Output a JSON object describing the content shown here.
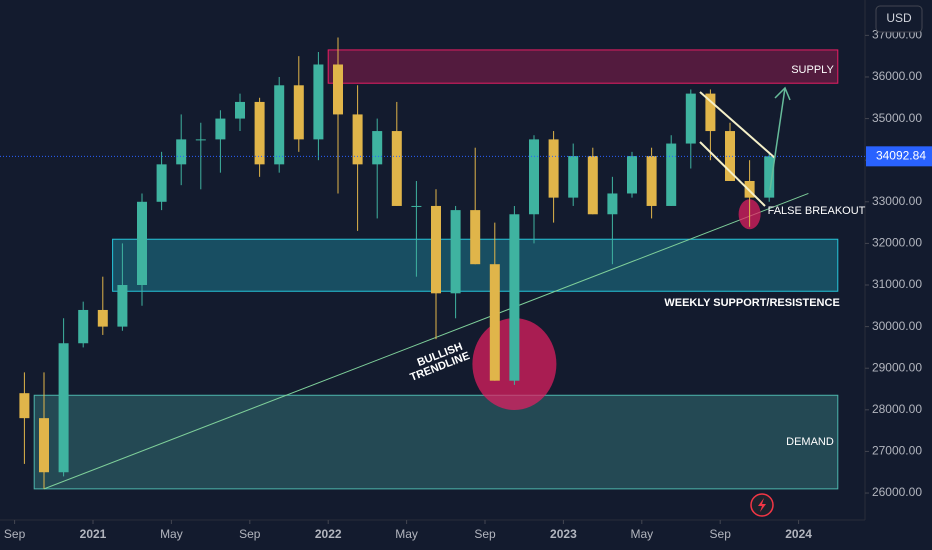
{
  "chart_data": {
    "type": "candlestick",
    "currency": "USD",
    "x": [
      "2020-09",
      "2020-10",
      "2020-11",
      "2020-12",
      "2021-01",
      "2021-02",
      "2021-03",
      "2021-04",
      "2021-05",
      "2021-06",
      "2021-07",
      "2021-08",
      "2021-09",
      "2021-10",
      "2021-11",
      "2021-12",
      "2022-01",
      "2022-02",
      "2022-03",
      "2022-04",
      "2022-05",
      "2022-06",
      "2022-07",
      "2022-08",
      "2022-09",
      "2022-10",
      "2022-11",
      "2022-12",
      "2023-01",
      "2023-02",
      "2023-03",
      "2023-04",
      "2023-05",
      "2023-06",
      "2023-07",
      "2023-08",
      "2023-09",
      "2023-10",
      "2023-11"
    ],
    "open": [
      28400,
      27800,
      26500,
      29600,
      30400,
      30000,
      31000,
      33000,
      33900,
      34500,
      34500,
      35000,
      35400,
      33900,
      35800,
      34500,
      36300,
      35100,
      33900,
      34700,
      32900,
      32900,
      30800,
      32800,
      31500,
      28700,
      32700,
      34500,
      33100,
      34100,
      32700,
      33200,
      34100,
      32900,
      34400,
      35600,
      34700,
      33500,
      33100
    ],
    "high": [
      28900,
      28900,
      30200,
      30600,
      31200,
      32000,
      33200,
      34200,
      35100,
      34900,
      35200,
      35600,
      35500,
      36000,
      36500,
      36600,
      36950,
      35800,
      35000,
      35400,
      33500,
      33300,
      32900,
      34300,
      32500,
      32900,
      34600,
      34700,
      34400,
      34300,
      33600,
      34200,
      34300,
      34600,
      35700,
      35700,
      34900,
      34000,
      34200
    ],
    "low": [
      26700,
      26100,
      26400,
      29500,
      29800,
      29900,
      30500,
      32800,
      33400,
      33300,
      33700,
      34700,
      33600,
      33700,
      34200,
      34000,
      33200,
      32300,
      32600,
      32900,
      31200,
      29700,
      30200,
      31500,
      28700,
      28600,
      32000,
      32500,
      32900,
      32700,
      31500,
      33100,
      32600,
      32900,
      33800,
      34000,
      33500,
      32400,
      33000
    ],
    "close": [
      27800,
      26500,
      29600,
      30400,
      30000,
      31000,
      33000,
      33900,
      34500,
      34500,
      35000,
      35400,
      33900,
      35800,
      34500,
      36300,
      35100,
      33900,
      34700,
      32900,
      32900,
      30800,
      32800,
      31500,
      28700,
      32700,
      34500,
      33100,
      34100,
      32700,
      33200,
      34100,
      32900,
      34400,
      35600,
      34700,
      33500,
      33100,
      34092.84
    ],
    "up_color": "#3fb3a0",
    "down_color": "#e0b54a",
    "last_price": 34092.84,
    "ylim": [
      25400,
      37850
    ],
    "yticks": [
      {
        "value": 26000,
        "label": "26000.00"
      },
      {
        "value": 27000,
        "label": "27000.00"
      },
      {
        "value": 28000,
        "label": "28000.00"
      },
      {
        "value": 29000,
        "label": "29000.00"
      },
      {
        "value": 30000,
        "label": "30000.00"
      },
      {
        "value": 31000,
        "label": "31000.00"
      },
      {
        "value": 32000,
        "label": "32000.00"
      },
      {
        "value": 33000,
        "label": "33000.00"
      },
      {
        "value": 34000,
        "label": "34000.00"
      },
      {
        "value": 35000,
        "label": "35000.00"
      },
      {
        "value": 36000,
        "label": "36000.00"
      },
      {
        "value": 37000,
        "label": "37000.00"
      }
    ],
    "xticks": [
      {
        "value": "2020-09",
        "label": "Sep"
      },
      {
        "value": "2021-01",
        "label": "2021"
      },
      {
        "value": "2021-05",
        "label": "May"
      },
      {
        "value": "2021-09",
        "label": "Sep"
      },
      {
        "value": "2022-01",
        "label": "2022"
      },
      {
        "value": "2022-05",
        "label": "May"
      },
      {
        "value": "2022-09",
        "label": "Sep"
      },
      {
        "value": "2023-01",
        "label": "2023"
      },
      {
        "value": "2023-05",
        "label": "May"
      },
      {
        "value": "2023-09",
        "label": "Sep"
      },
      {
        "value": "2024-01",
        "label": "2024"
      }
    ],
    "zones": [
      {
        "label": "SUPPLY",
        "from": "2022-01",
        "to": "2024-03",
        "low": 35850,
        "high": 36650,
        "color": "#e91e63"
      },
      {
        "label": "WEEKLY SUPPORT/RESISTENCE",
        "from": "2021-02",
        "to": "2024-03",
        "low": 30850,
        "high": 32100,
        "color": "#26c6da"
      },
      {
        "label": "DEMAND",
        "from": "2020-10",
        "to": "2024-03",
        "low": 26100,
        "high": 28350,
        "color": "#4db6ac"
      }
    ],
    "trendline": {
      "label": [
        "BULLISH",
        "TRENDLINE"
      ],
      "from": {
        "x": "2020-10",
        "y": 26100
      },
      "to": {
        "x": "2024-01",
        "y": 33200
      }
    },
    "circles": [
      {
        "x": "2022-10",
        "y": 29100
      },
      {
        "x": "2023-10",
        "y": 32700,
        "label": "FALSE BREAKOUT"
      }
    ]
  }
}
